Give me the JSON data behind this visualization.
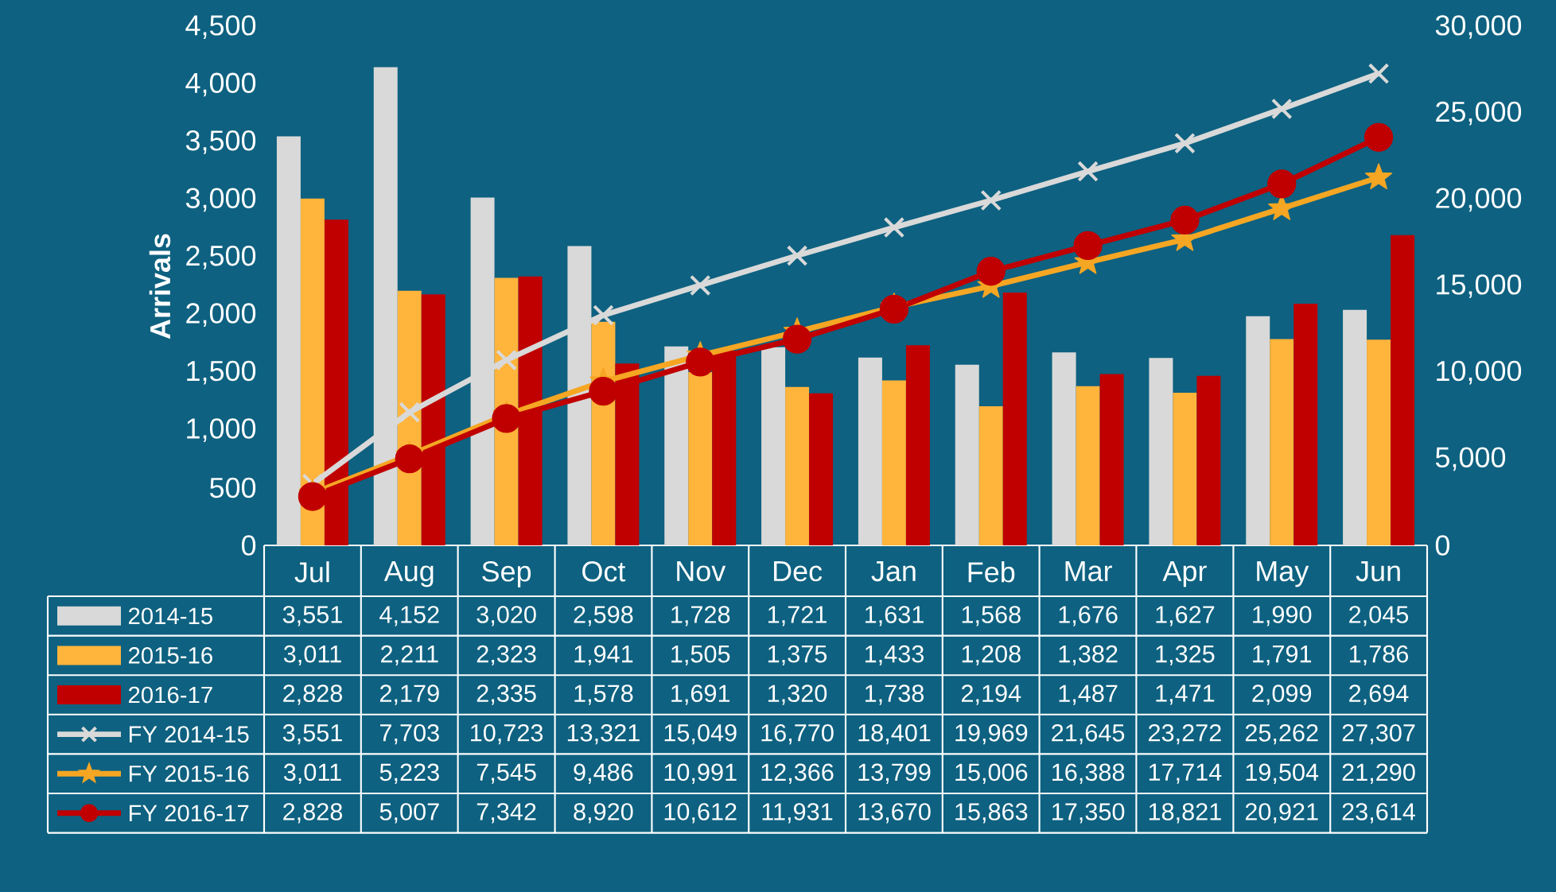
{
  "chart_data": {
    "type": "bar",
    "ylabel": "Arrivals",
    "categories": [
      "Jul",
      "Aug",
      "Sep",
      "Oct",
      "Nov",
      "Dec",
      "Jan",
      "Feb",
      "Mar",
      "Apr",
      "May",
      "Jun"
    ],
    "series": [
      {
        "name": "2014-15",
        "color": "#d9d9d9",
        "values": [
          3551,
          4152,
          3020,
          2598,
          1728,
          1721,
          1631,
          1568,
          1676,
          1627,
          1990,
          2045
        ],
        "value_labels": [
          "3,551",
          "4,152",
          "3,020",
          "2,598",
          "1,728",
          "1,721",
          "1,631",
          "1,568",
          "1,676",
          "1,627",
          "1,990",
          "2,045"
        ]
      },
      {
        "name": "2015-16",
        "color": "#ffb43c",
        "values": [
          3011,
          2211,
          2323,
          1941,
          1505,
          1375,
          1433,
          1208,
          1382,
          1325,
          1791,
          1786
        ],
        "value_labels": [
          "3,011",
          "2,211",
          "2,323",
          "1,941",
          "1,505",
          "1,375",
          "1,433",
          "1,208",
          "1,382",
          "1,325",
          "1,791",
          "1,786"
        ]
      },
      {
        "name": "2016-17",
        "color": "#c00000",
        "values": [
          2828,
          2179,
          2335,
          1578,
          1691,
          1320,
          1738,
          2194,
          1487,
          1471,
          2099,
          2694
        ],
        "value_labels": [
          "2,828",
          "2,179",
          "2,335",
          "1,578",
          "1,691",
          "1,320",
          "1,738",
          "2,194",
          "1,487",
          "1,471",
          "2,099",
          "2,694"
        ]
      },
      {
        "name": "FY 2014-15",
        "type": "line",
        "axis": "y2",
        "marker": "cross",
        "color": "#d9d9d9",
        "values": [
          3551,
          7703,
          10723,
          13321,
          15049,
          16770,
          18401,
          19969,
          21645,
          23272,
          25262,
          27307
        ],
        "value_labels": [
          "3,551",
          "7,703",
          "10,723",
          "13,321",
          "15,049",
          "16,770",
          "18,401",
          "19,969",
          "21,645",
          "23,272",
          "25,262",
          "27,307"
        ]
      },
      {
        "name": "FY 2015-16",
        "type": "line",
        "axis": "y2",
        "marker": "star",
        "color": "#f5a623",
        "values": [
          3011,
          5223,
          7545,
          9486,
          10991,
          12366,
          13799,
          15006,
          16388,
          17714,
          19504,
          21290
        ],
        "value_labels": [
          "3,011",
          "5,223",
          "7,545",
          "9,486",
          "10,991",
          "12,366",
          "13,799",
          "15,006",
          "16,388",
          "17,714",
          "19,504",
          "21,290"
        ]
      },
      {
        "name": "FY 2016-17",
        "type": "line",
        "axis": "y2",
        "marker": "circle",
        "color": "#c00000",
        "values": [
          2828,
          5007,
          7342,
          8920,
          10612,
          11931,
          13670,
          15863,
          17350,
          18821,
          20921,
          23614
        ],
        "value_labels": [
          "2,828",
          "5,007",
          "7,342",
          "8,920",
          "10,612",
          "11,931",
          "13,670",
          "15,863",
          "17,350",
          "18,821",
          "20,921",
          "23,614"
        ]
      }
    ],
    "ylim": [
      0,
      4500
    ],
    "yticks": [
      0,
      500,
      {
        "value": 1000,
        "label": "1,000"
      },
      {
        "value": 1500,
        "label": "1,500"
      },
      {
        "value": 2000,
        "label": "2,000"
      },
      {
        "value": 2500,
        "label": "2,500"
      },
      {
        "value": 3000,
        "label": "3,000"
      },
      {
        "value": 3500,
        "label": "3,500"
      },
      {
        "value": 4000,
        "label": "4,000"
      },
      {
        "value": 4500,
        "label": "4,500"
      }
    ],
    "y2lim": [
      0,
      30000
    ],
    "y2ticks": [
      0,
      {
        "value": 5000,
        "label": "5,000"
      },
      {
        "value": 10000,
        "label": "10,000"
      },
      {
        "value": 15000,
        "label": "15,000"
      },
      {
        "value": 20000,
        "label": "20,000"
      },
      {
        "value": 25000,
        "label": "25,000"
      },
      {
        "value": 30000,
        "label": "30,000"
      }
    ],
    "legend": "bottom"
  }
}
